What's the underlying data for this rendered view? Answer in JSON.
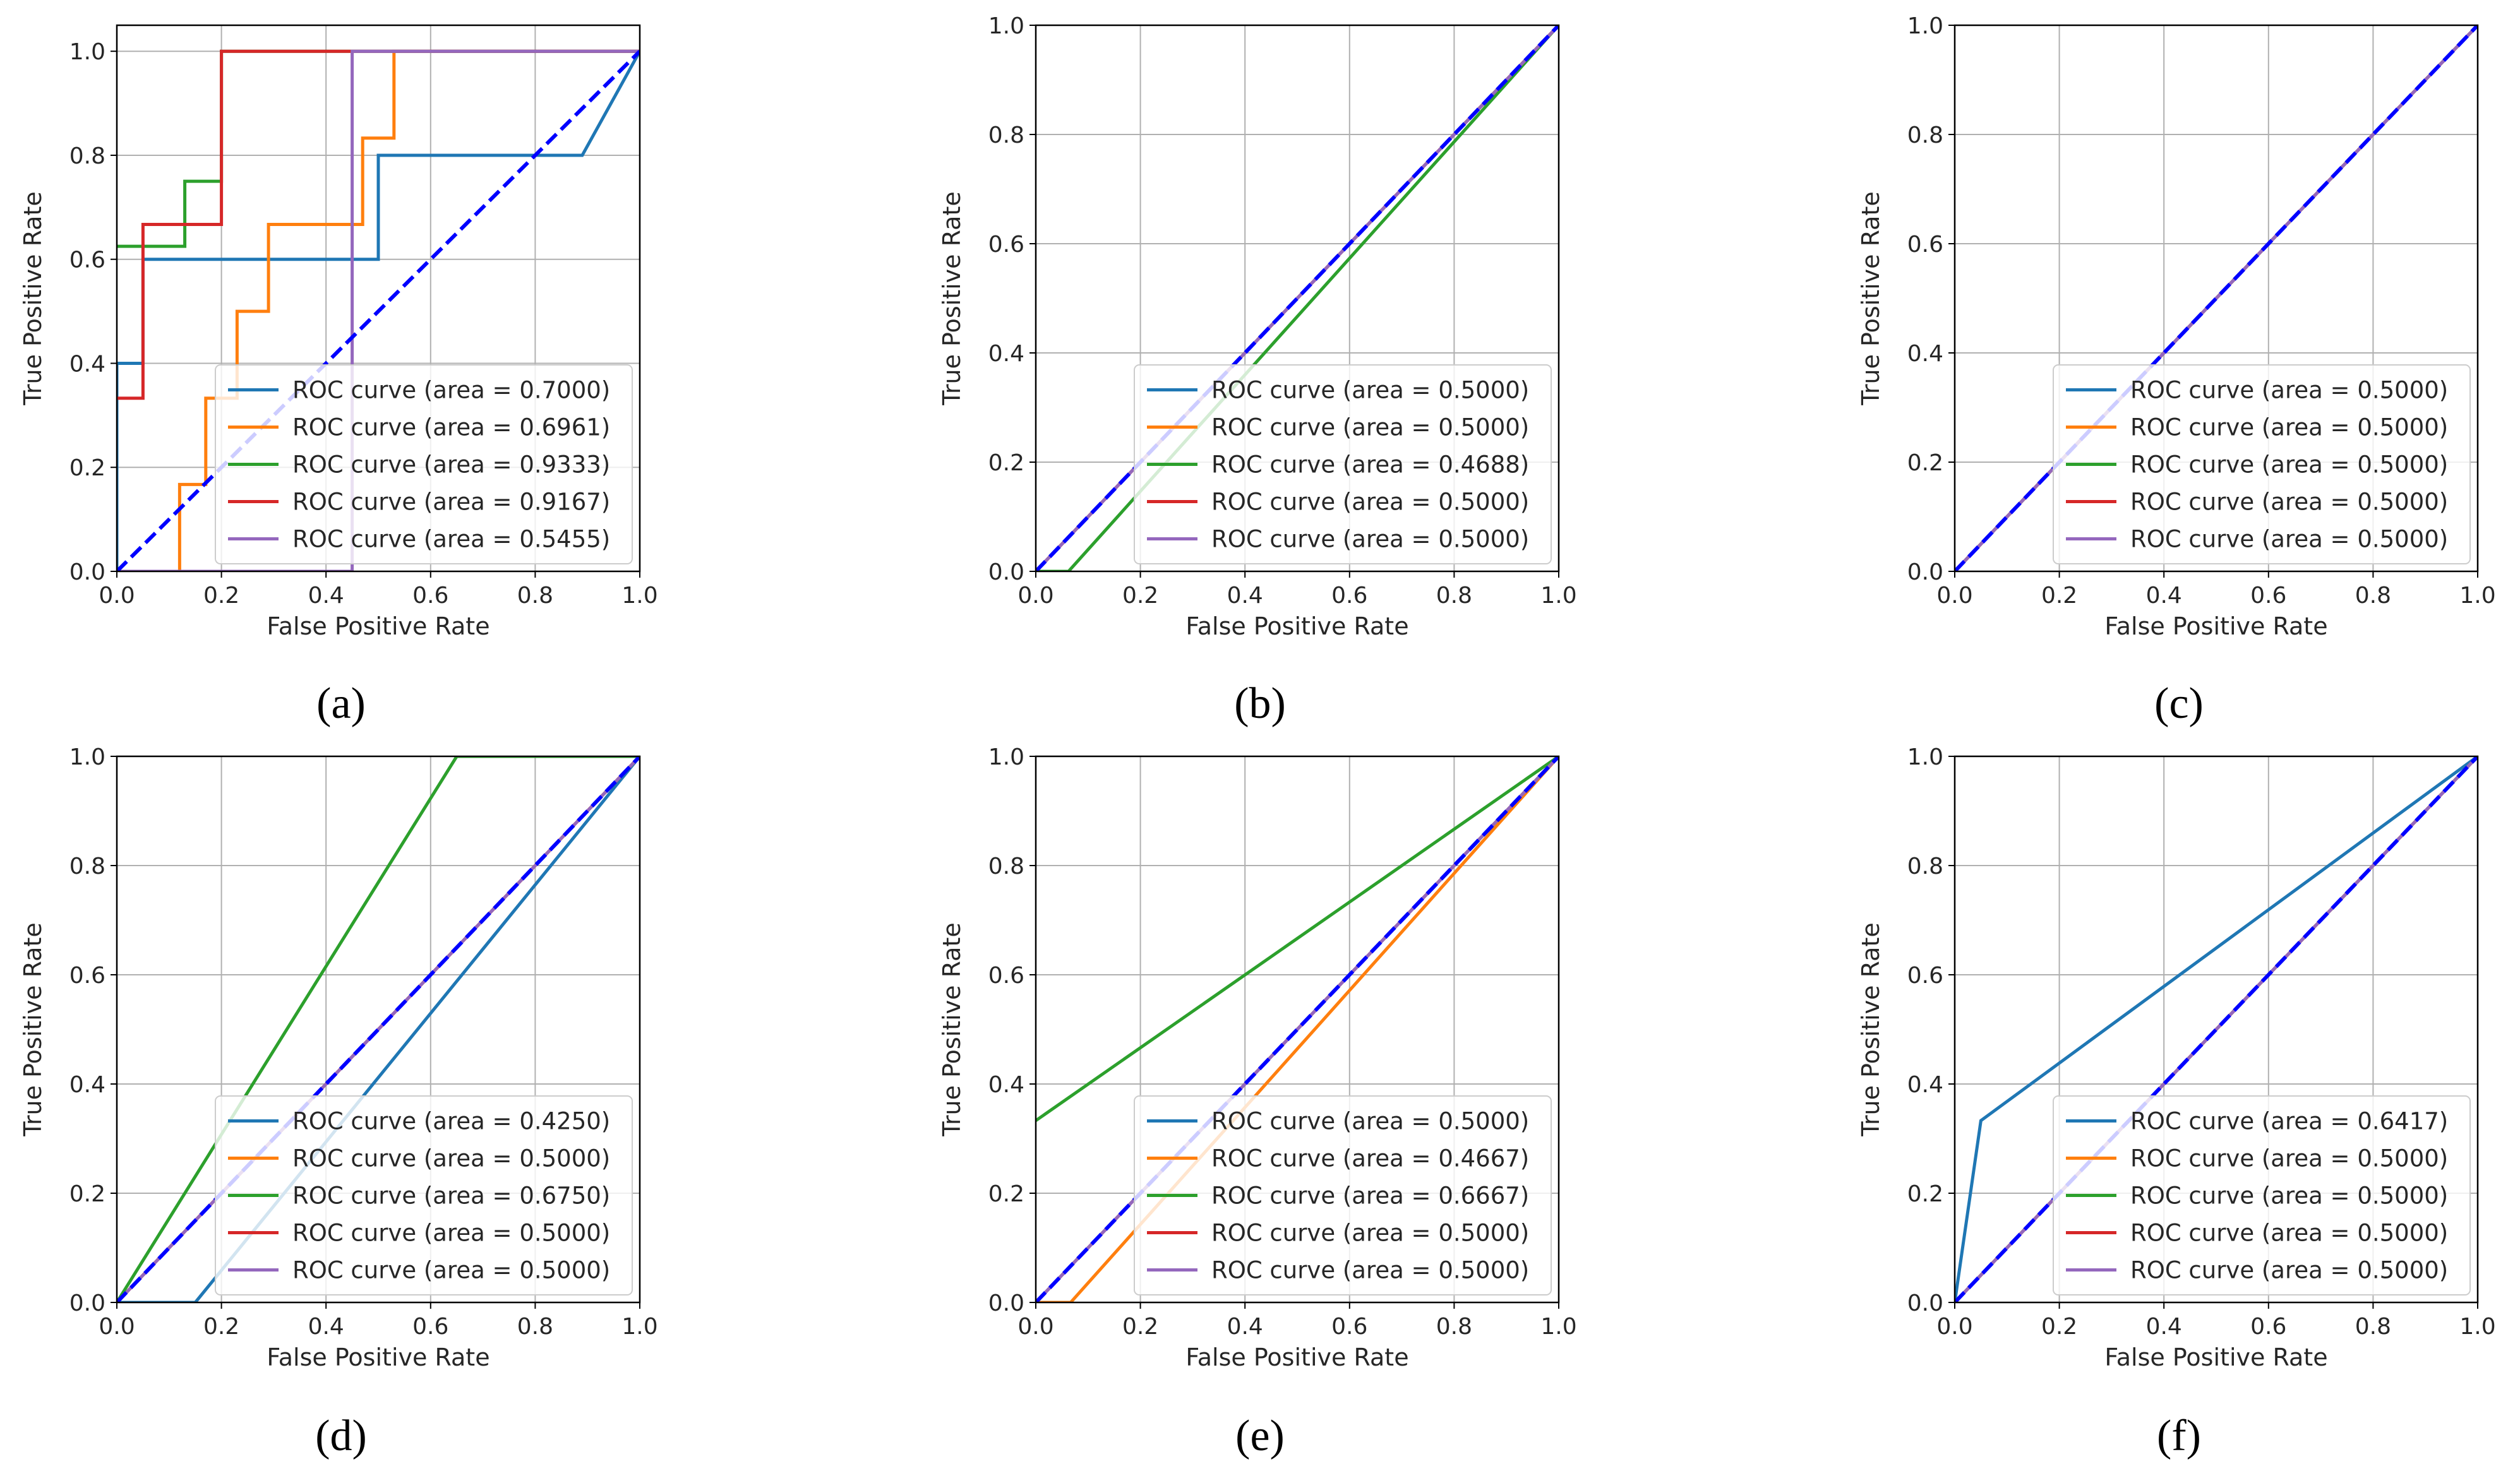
{
  "colors": {
    "blue": "#1f77b4",
    "orange": "#ff7f0e",
    "green": "#2ca02c",
    "red": "#d62728",
    "purple": "#9467bd",
    "diagonal": "#0000ff",
    "grid": "#b0b0b0"
  },
  "axes_text": {
    "xlabel": "False Positive Rate",
    "ylabel": "True Positive Rate",
    "ticks": [
      "0.0",
      "0.2",
      "0.4",
      "0.6",
      "0.8",
      "1.0"
    ]
  },
  "chart_data": [
    {
      "type": "line",
      "caption": "(a)",
      "xlabel": "False Positive Rate",
      "ylabel": "True Positive Rate",
      "xlim": [
        0,
        1
      ],
      "ylim": [
        0,
        1.05
      ],
      "grid": true,
      "legend_position": "lower-right",
      "diagonal": [
        [
          0,
          0
        ],
        [
          1,
          1
        ]
      ],
      "series": [
        {
          "name": "ROC curve (area = 0.7000)",
          "color": "blue",
          "points": [
            [
              0,
              0
            ],
            [
              0,
              0.4
            ],
            [
              0.05,
              0.4
            ],
            [
              0.05,
              0.6
            ],
            [
              0.5,
              0.6
            ],
            [
              0.5,
              0.8
            ],
            [
              0.89,
              0.8
            ],
            [
              1,
              1
            ]
          ]
        },
        {
          "name": "ROC curve (area = 0.6961)",
          "color": "orange",
          "points": [
            [
              0,
              0
            ],
            [
              0.12,
              0
            ],
            [
              0.12,
              0.167
            ],
            [
              0.17,
              0.167
            ],
            [
              0.17,
              0.333
            ],
            [
              0.23,
              0.333
            ],
            [
              0.23,
              0.5
            ],
            [
              0.29,
              0.5
            ],
            [
              0.29,
              0.667
            ],
            [
              0.47,
              0.667
            ],
            [
              0.47,
              0.833
            ],
            [
              0.53,
              0.833
            ],
            [
              0.53,
              1
            ],
            [
              1,
              1
            ]
          ]
        },
        {
          "name": "ROC curve (area = 0.9333)",
          "color": "green",
          "points": [
            [
              0,
              0.625
            ],
            [
              0.13,
              0.625
            ],
            [
              0.13,
              0.75
            ],
            [
              0.2,
              0.75
            ],
            [
              0.2,
              1
            ],
            [
              1,
              1
            ]
          ]
        },
        {
          "name": "ROC curve (area = 0.9167)",
          "color": "red",
          "points": [
            [
              0,
              0.333
            ],
            [
              0.05,
              0.333
            ],
            [
              0.05,
              0.667
            ],
            [
              0.2,
              0.667
            ],
            [
              0.2,
              1
            ],
            [
              1,
              1
            ]
          ]
        },
        {
          "name": "ROC curve (area = 0.5455)",
          "color": "purple",
          "points": [
            [
              0,
              0
            ],
            [
              0.45,
              0
            ],
            [
              0.45,
              1
            ],
            [
              1,
              1
            ]
          ]
        }
      ]
    },
    {
      "type": "line",
      "caption": "(b)",
      "xlabel": "False Positive Rate",
      "ylabel": "True Positive Rate",
      "xlim": [
        0,
        1
      ],
      "ylim": [
        0,
        1.0
      ],
      "grid": true,
      "legend_position": "lower-right",
      "diagonal": [
        [
          0,
          0
        ],
        [
          1,
          1
        ]
      ],
      "series": [
        {
          "name": "ROC curve (area = 0.5000)",
          "color": "blue",
          "points": [
            [
              0,
              0
            ],
            [
              1,
              1
            ]
          ]
        },
        {
          "name": "ROC curve (area = 0.5000)",
          "color": "orange",
          "points": [
            [
              0,
              0
            ],
            [
              1,
              1
            ]
          ]
        },
        {
          "name": "ROC curve (area = 0.4688)",
          "color": "green",
          "points": [
            [
              0,
              0
            ],
            [
              0.0625,
              0
            ],
            [
              1,
              1
            ]
          ]
        },
        {
          "name": "ROC curve (area = 0.5000)",
          "color": "red",
          "points": [
            [
              0,
              0
            ],
            [
              1,
              1
            ]
          ]
        },
        {
          "name": "ROC curve (area = 0.5000)",
          "color": "purple",
          "points": [
            [
              0,
              0
            ],
            [
              1,
              1
            ]
          ]
        }
      ]
    },
    {
      "type": "line",
      "caption": "(c)",
      "xlabel": "False Positive Rate",
      "ylabel": "True Positive Rate",
      "xlim": [
        0,
        1
      ],
      "ylim": [
        0,
        1.0
      ],
      "grid": true,
      "legend_position": "lower-right",
      "diagonal": [
        [
          0,
          0
        ],
        [
          1,
          1
        ]
      ],
      "series": [
        {
          "name": "ROC curve (area = 0.5000)",
          "color": "blue",
          "points": [
            [
              0,
              0
            ],
            [
              1,
              1
            ]
          ]
        },
        {
          "name": "ROC curve (area = 0.5000)",
          "color": "orange",
          "points": [
            [
              0,
              0
            ],
            [
              1,
              1
            ]
          ]
        },
        {
          "name": "ROC curve (area = 0.5000)",
          "color": "green",
          "points": [
            [
              0,
              0
            ],
            [
              1,
              1
            ]
          ]
        },
        {
          "name": "ROC curve (area = 0.5000)",
          "color": "red",
          "points": [
            [
              0,
              0
            ],
            [
              1,
              1
            ]
          ]
        },
        {
          "name": "ROC curve (area = 0.5000)",
          "color": "purple",
          "points": [
            [
              0,
              0
            ],
            [
              1,
              1
            ]
          ]
        }
      ]
    },
    {
      "type": "line",
      "caption": "(d)",
      "xlabel": "False Positive Rate",
      "ylabel": "True Positive Rate",
      "xlim": [
        0,
        1
      ],
      "ylim": [
        0,
        1.0
      ],
      "grid": true,
      "legend_position": "lower-right",
      "diagonal": [
        [
          0,
          0
        ],
        [
          1,
          1
        ]
      ],
      "series": [
        {
          "name": "ROC curve (area = 0.4250)",
          "color": "blue",
          "points": [
            [
              0,
              0
            ],
            [
              0.15,
              0
            ],
            [
              1,
              1
            ]
          ]
        },
        {
          "name": "ROC curve (area = 0.5000)",
          "color": "orange",
          "points": [
            [
              0,
              0
            ],
            [
              1,
              1
            ]
          ]
        },
        {
          "name": "ROC curve (area = 0.6750)",
          "color": "green",
          "points": [
            [
              0,
              0
            ],
            [
              0.65,
              1
            ],
            [
              1,
              1
            ]
          ]
        },
        {
          "name": "ROC curve (area = 0.5000)",
          "color": "red",
          "points": [
            [
              0,
              0
            ],
            [
              1,
              1
            ]
          ]
        },
        {
          "name": "ROC curve (area = 0.5000)",
          "color": "purple",
          "points": [
            [
              0,
              0
            ],
            [
              1,
              1
            ]
          ]
        }
      ]
    },
    {
      "type": "line",
      "caption": "(e)",
      "xlabel": "False Positive Rate",
      "ylabel": "True Positive Rate",
      "xlim": [
        0,
        1
      ],
      "ylim": [
        0,
        1.0
      ],
      "grid": true,
      "legend_position": "lower-right",
      "diagonal": [
        [
          0,
          0
        ],
        [
          1,
          1
        ]
      ],
      "series": [
        {
          "name": "ROC curve (area = 0.5000)",
          "color": "blue",
          "points": [
            [
              0,
              0
            ],
            [
              1,
              1
            ]
          ]
        },
        {
          "name": "ROC curve (area = 0.4667)",
          "color": "orange",
          "points": [
            [
              0,
              0
            ],
            [
              0.0667,
              0
            ],
            [
              1,
              1
            ]
          ]
        },
        {
          "name": "ROC curve (area = 0.6667)",
          "color": "green",
          "points": [
            [
              0,
              0.333
            ],
            [
              1,
              1
            ]
          ]
        },
        {
          "name": "ROC curve (area = 0.5000)",
          "color": "red",
          "points": [
            [
              0,
              0
            ],
            [
              1,
              1
            ]
          ]
        },
        {
          "name": "ROC curve (area = 0.5000)",
          "color": "purple",
          "points": [
            [
              0,
              0
            ],
            [
              1,
              1
            ]
          ]
        }
      ]
    },
    {
      "type": "line",
      "caption": "(f)",
      "xlabel": "False Positive Rate",
      "ylabel": "True Positive Rate",
      "xlim": [
        0,
        1
      ],
      "ylim": [
        0,
        1.0
      ],
      "grid": true,
      "legend_position": "lower-right",
      "diagonal": [
        [
          0,
          0
        ],
        [
          1,
          1
        ]
      ],
      "series": [
        {
          "name": "ROC curve (area = 0.6417)",
          "color": "blue",
          "points": [
            [
              0,
              0
            ],
            [
              0.05,
              0.333
            ],
            [
              1,
              1
            ]
          ]
        },
        {
          "name": "ROC curve (area = 0.5000)",
          "color": "orange",
          "points": [
            [
              0,
              0
            ],
            [
              1,
              1
            ]
          ]
        },
        {
          "name": "ROC curve (area = 0.5000)",
          "color": "green",
          "points": [
            [
              0,
              0
            ],
            [
              1,
              1
            ]
          ]
        },
        {
          "name": "ROC curve (area = 0.5000)",
          "color": "red",
          "points": [
            [
              0,
              0
            ],
            [
              1,
              1
            ]
          ]
        },
        {
          "name": "ROC curve (area = 0.5000)",
          "color": "purple",
          "points": [
            [
              0,
              0
            ],
            [
              1,
              1
            ]
          ]
        }
      ]
    }
  ]
}
